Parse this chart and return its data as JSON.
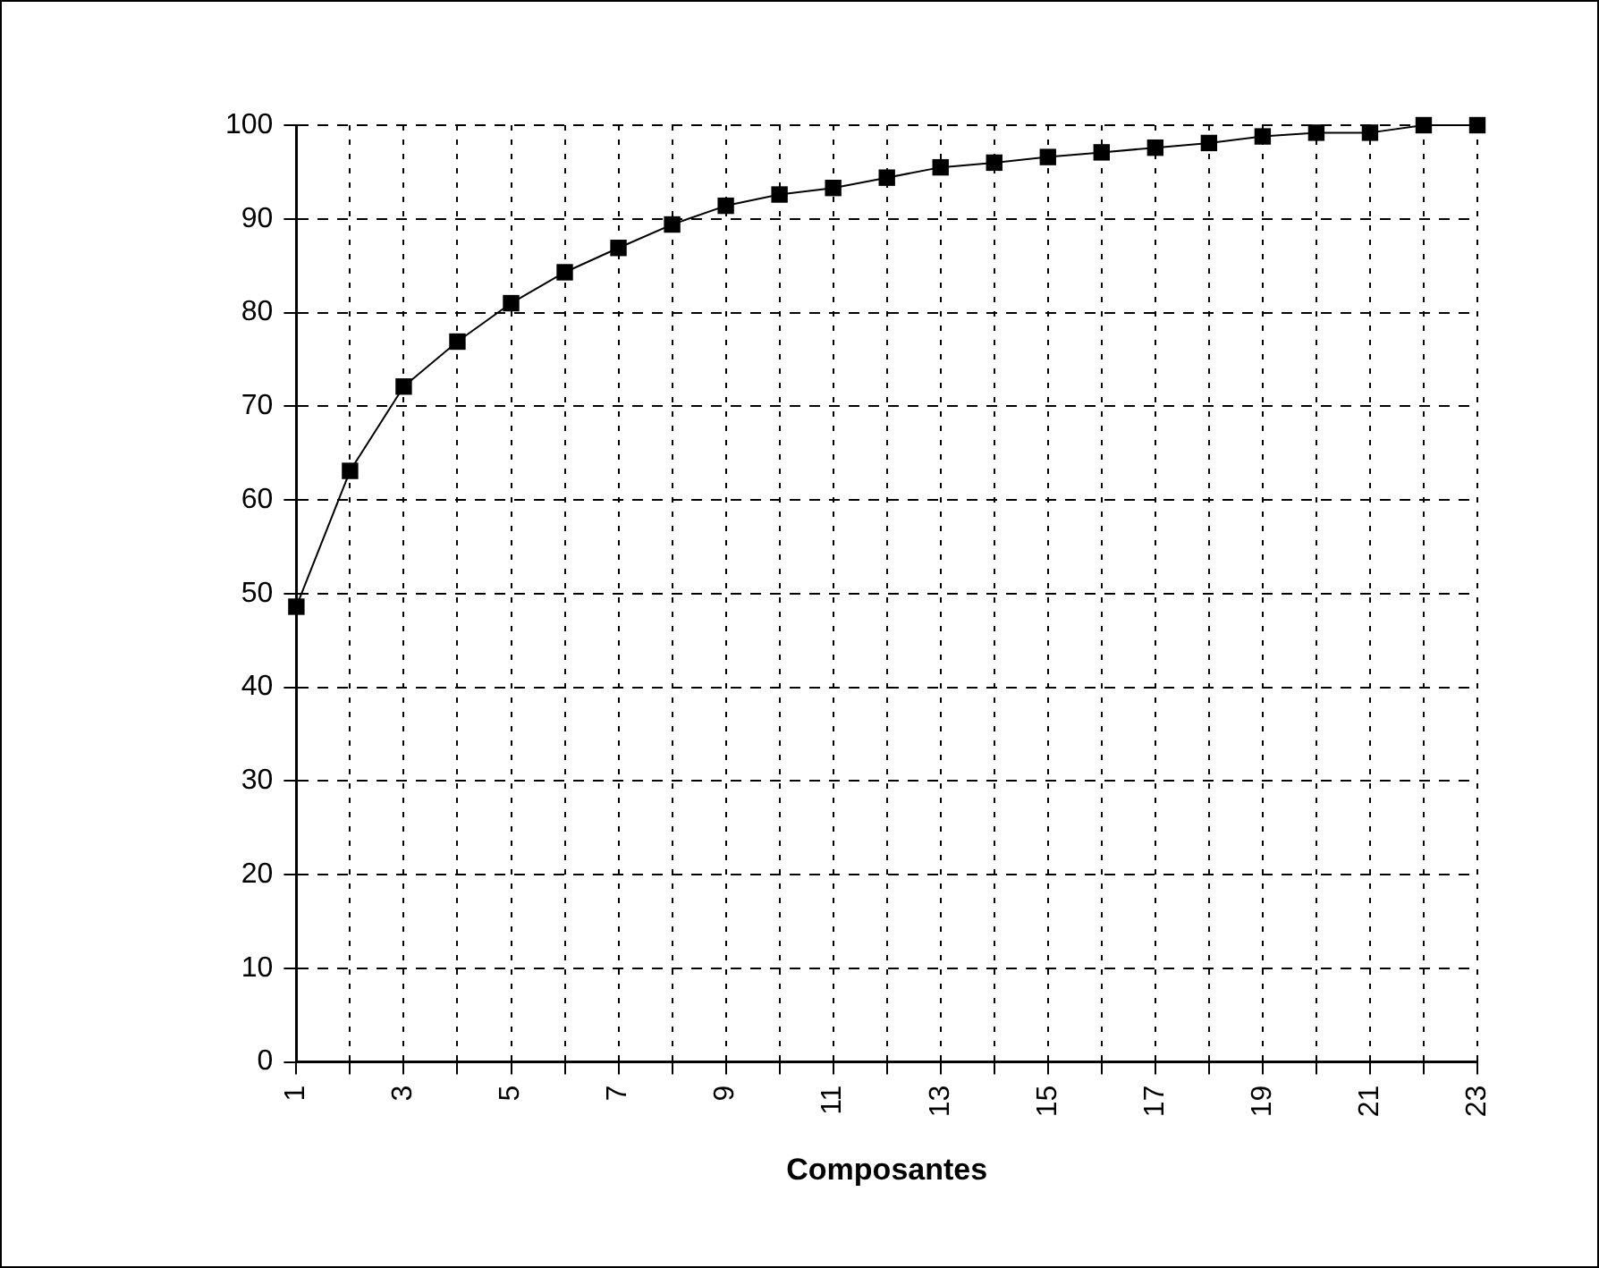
{
  "chart_data": {
    "type": "line",
    "xlabel": "Composantes",
    "x": [
      1,
      2,
      3,
      4,
      5,
      6,
      7,
      8,
      9,
      10,
      11,
      12,
      13,
      14,
      15,
      16,
      17,
      18,
      19,
      20,
      21,
      22,
      23
    ],
    "series": [
      {
        "color": "#000000",
        "values": [
          48.6,
          63.1,
          72.1,
          76.9,
          81.0,
          84.3,
          86.9,
          89.4,
          91.4,
          92.6,
          93.3,
          94.4,
          95.5,
          96.0,
          96.6,
          97.1,
          97.6,
          98.1,
          98.8,
          99.2,
          99.2,
          100,
          100
        ]
      }
    ],
    "xlim": [
      1,
      23
    ],
    "xticks": [
      1,
      {
        "value": 2,
        "label": null
      },
      3,
      {
        "value": 4,
        "label": null
      },
      5,
      {
        "value": 6,
        "label": null
      },
      7,
      {
        "value": 8,
        "label": null
      },
      9,
      {
        "value": 10,
        "label": null
      },
      11,
      {
        "value": 12,
        "label": null
      },
      13,
      {
        "value": 14,
        "label": null
      },
      15,
      {
        "value": 16,
        "label": null
      },
      17,
      {
        "value": 18,
        "label": null
      },
      19,
      {
        "value": 20,
        "label": null
      },
      21,
      {
        "value": 22,
        "label": null
      },
      23
    ],
    "ylim": [
      0,
      100
    ],
    "yticks": [
      0,
      10,
      20,
      30,
      40,
      50,
      60,
      70,
      80,
      90,
      100
    ],
    "grid": true,
    "marker": "square",
    "line_style": "solid"
  }
}
